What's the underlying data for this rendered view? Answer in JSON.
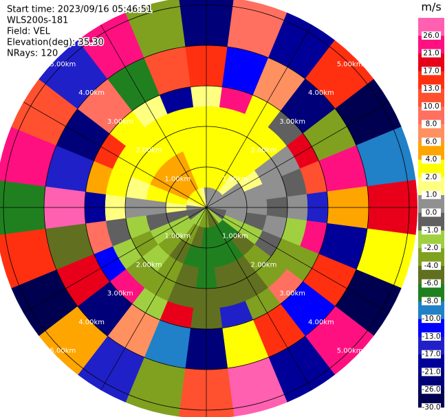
{
  "chart_data": {
    "type": "ppi",
    "info": [
      "Start time: 2023/09/16 05:46:51",
      "WLS200s-181",
      "Field: VEL",
      "Elevation(deg): 35.30",
      "NRays: 120"
    ],
    "colorbar_title": "m/s",
    "clim": [
      -30,
      30
    ],
    "ticks": [
      {
        "value": -30,
        "label": "-30.0"
      },
      {
        "value": -26,
        "label": "-26.0"
      },
      {
        "value": -21,
        "label": "-21.0"
      },
      {
        "value": -17,
        "label": "-17.0"
      },
      {
        "value": -13,
        "label": "-13.0"
      },
      {
        "value": -10,
        "label": "-10.0"
      },
      {
        "value": -8,
        "label": "-8.0"
      },
      {
        "value": -6,
        "label": "-6.0"
      },
      {
        "value": -4,
        "label": "-4.0"
      },
      {
        "value": -2,
        "label": "-2.0"
      },
      {
        "value": -1,
        "label": "-1.0"
      },
      {
        "value": 0,
        "label": "0.0"
      },
      {
        "value": 1,
        "label": "1.0"
      },
      {
        "value": 2,
        "label": "2.0"
      },
      {
        "value": 4,
        "label": "4.0"
      },
      {
        "value": 6,
        "label": "6.0"
      },
      {
        "value": 8,
        "label": "8.0"
      },
      {
        "value": 10,
        "label": "10.0"
      },
      {
        "value": 13,
        "label": "13.0"
      },
      {
        "value": 17,
        "label": "17.0"
      },
      {
        "value": 21,
        "label": "21.0"
      },
      {
        "value": 26,
        "label": "26.0"
      }
    ],
    "colors": [
      "#000050",
      "#000078",
      "#000098",
      "#2020c8",
      "#0000ff",
      "#2080c8",
      "#208020",
      "#607020",
      "#80a020",
      "#a0d040",
      "#606060",
      "#909090",
      "#ffff80",
      "#ffff00",
      "#ffa500",
      "#ff9060",
      "#ff7060",
      "#ff5030",
      "#ff3010",
      "#e8001a",
      "#ff1080",
      "#ff60b0"
    ],
    "range_edges_km": [
      0,
      0.5,
      1,
      1.5,
      2,
      2.5,
      3,
      4,
      5.2
    ],
    "range_rings": [
      {
        "value": 1,
        "label": "1.00km"
      },
      {
        "value": 2,
        "label": "2.00km"
      },
      {
        "value": 3,
        "label": "3.00km"
      },
      {
        "value": 4,
        "label": "4.00km"
      },
      {
        "value": 5,
        "label": "5.00km"
      }
    ],
    "rays": [
      {
        "azimuth": 0,
        "values": [
          0.5,
          3,
          3,
          3,
          3,
          1.5,
          15,
          -22
        ]
      },
      {
        "azimuth": 15,
        "values": [
          0.5,
          3,
          3,
          3,
          3,
          22,
          -12,
          9
        ]
      },
      {
        "azimuth": 30,
        "values": [
          0.5,
          3,
          3,
          3,
          3,
          3,
          7,
          -18
        ]
      },
      {
        "azimuth": 45,
        "values": [
          0.5,
          1.5,
          3,
          3,
          3,
          -0.5,
          -24,
          14
        ]
      },
      {
        "azimuth": 60,
        "values": [
          0.5,
          0.5,
          1.5,
          0.5,
          0.5,
          19,
          -3,
          -28
        ]
      },
      {
        "azimuth": 75,
        "values": [
          0.5,
          0.5,
          0.5,
          0.5,
          -0.5,
          11,
          25,
          -9
        ]
      },
      {
        "azimuth": 90,
        "values": [
          0.5,
          0.5,
          0.5,
          -0.5,
          0.5,
          -15,
          5,
          18
        ]
      },
      {
        "azimuth": 105,
        "values": [
          -0.5,
          0.5,
          -0.5,
          0.5,
          -1.5,
          23,
          -20,
          2
        ]
      },
      {
        "azimuth": 120,
        "values": [
          -0.5,
          -1.5,
          -1.5,
          -0.5,
          -3,
          -3,
          13,
          -27
        ]
      },
      {
        "azimuth": 135,
        "values": [
          -1.5,
          -7,
          -5,
          -3,
          -3,
          8,
          -11,
          21
        ]
      },
      {
        "azimuth": 150,
        "values": [
          -5,
          -7,
          -7,
          -5,
          -5,
          -3,
          16,
          -19
        ]
      },
      {
        "azimuth": 165,
        "values": [
          -5,
          -7,
          -7,
          -5,
          -5,
          -14,
          3,
          27
        ]
      },
      {
        "azimuth": 180,
        "values": [
          -3,
          -7,
          -7,
          -7,
          -5,
          -5,
          -25,
          12
        ]
      },
      {
        "azimuth": 195,
        "values": [
          -3,
          -5,
          -7,
          -5,
          -5,
          20,
          -9,
          -4
        ]
      },
      {
        "azimuth": 210,
        "values": [
          -1.5,
          -3,
          -5,
          -3,
          -3,
          -1.5,
          7,
          -16
        ]
      },
      {
        "azimuth": 225,
        "values": [
          -1.5,
          -1.5,
          -3,
          -1.5,
          -3,
          24,
          -22,
          5
        ]
      },
      {
        "azimuth": 240,
        "values": [
          -0.5,
          -1.5,
          -1.5,
          -3,
          -1.5,
          -12,
          18,
          -28
        ]
      },
      {
        "azimuth": 255,
        "values": [
          -0.5,
          -0.5,
          -0.5,
          -1.5,
          -0.5,
          9,
          -5,
          14
        ]
      },
      {
        "azimuth": 270,
        "values": [
          0.5,
          1.5,
          0.5,
          0.5,
          1.5,
          -19,
          26,
          -8
        ]
      },
      {
        "azimuth": 285,
        "values": [
          1.5,
          3,
          3,
          1.5,
          3,
          4,
          -14,
          22
        ]
      },
      {
        "azimuth": 300,
        "values": [
          3,
          5,
          5,
          3,
          3,
          15,
          -26,
          11
        ]
      },
      {
        "azimuth": 315,
        "values": [
          3,
          5,
          5,
          3,
          3,
          3,
          9,
          -17
        ]
      },
      {
        "azimuth": 330,
        "values": [
          3,
          5,
          5,
          3,
          3,
          1.5,
          -7,
          25
        ]
      },
      {
        "azimuth": 345,
        "values": [
          1.5,
          3,
          3,
          3,
          3,
          -20,
          12,
          -3
        ]
      }
    ]
  }
}
